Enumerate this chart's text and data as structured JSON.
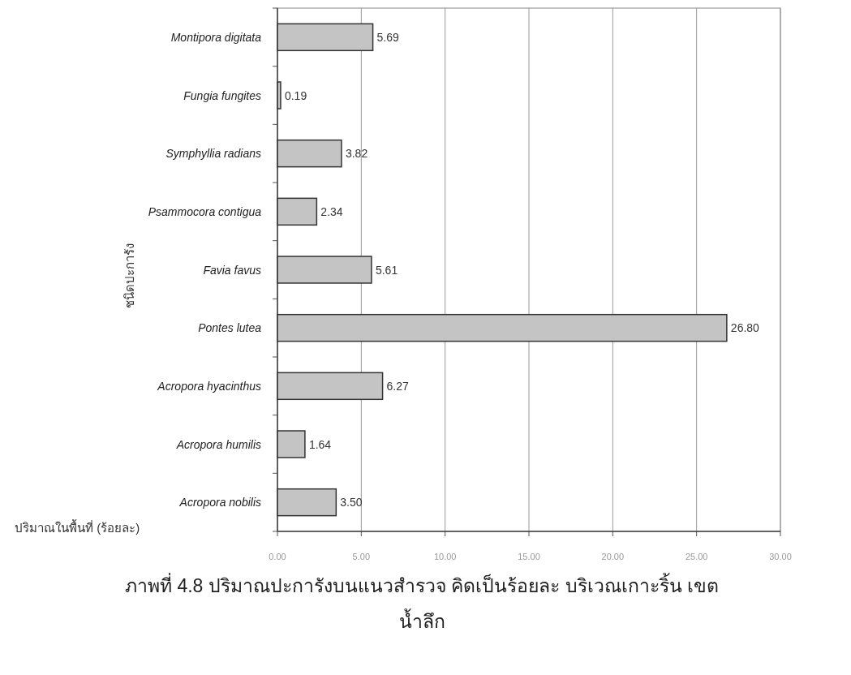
{
  "chart_data": {
    "type": "bar",
    "orientation": "horizontal",
    "title": "ภาพที่ 4.8 ปริมาณปะการังบนแนวสำรวจ คิดเป็นร้อยละ บริเวณเกาะริ้น เขตน้ำลึก",
    "xlabel": "ปริมาณในพื้นที่ (ร้อยละ)",
    "ylabel": "ชนิดปะการัง",
    "categories": [
      "Montipora digitata",
      "Fungia fungites",
      "Symphyllia radians",
      "Psammocora contigua",
      "Favia favus",
      "Pontes lutea",
      "Acropora hyacinthus",
      "Acropora humilis",
      "Acropora nobilis"
    ],
    "values": [
      5.69,
      0.19,
      3.82,
      2.34,
      5.61,
      26.8,
      6.27,
      1.64,
      3.5
    ],
    "value_labels": [
      "5.69",
      "0.19",
      "3.82",
      "2.34",
      "5.61",
      "26.80",
      "6.27",
      "1.64",
      "3.50"
    ],
    "color": "#c4c4c4",
    "xlim": [
      0,
      30
    ],
    "xticks": [
      {
        "value": 0,
        "label": "0.00"
      },
      {
        "value": 5,
        "label": "5.00"
      },
      {
        "value": 10,
        "label": "10.00"
      },
      {
        "value": 15,
        "label": "15.00"
      },
      {
        "value": 20,
        "label": "20.00"
      },
      {
        "value": 25,
        "label": "25.00"
      },
      {
        "value": 30,
        "label": "30.00"
      }
    ],
    "grid": "x"
  }
}
